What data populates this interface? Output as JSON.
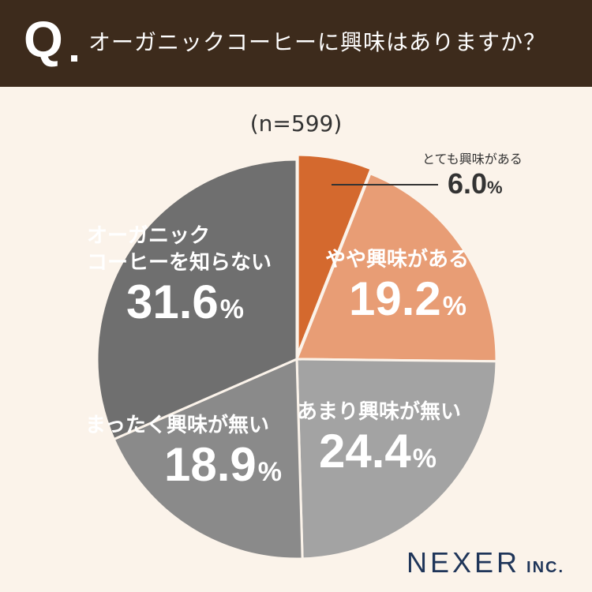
{
  "header": {
    "q_mark": "Q",
    "question": "オーガニックコーヒーに興味はありますか？"
  },
  "sample_size": "(n=599)",
  "labels": {
    "very": {
      "name": "とても興味がある",
      "value": "6.0"
    },
    "somewhat": {
      "name": "やや興味がある",
      "value": "19.2"
    },
    "notmuch": {
      "name": "あまり興味が無い",
      "value": "24.4"
    },
    "none": {
      "name": "まったく興味が無い",
      "value": "18.9"
    },
    "unaware": {
      "name1": "オーガニック",
      "name2": "コーヒーを知らない",
      "value": "31.6"
    },
    "percent_sign": "%"
  },
  "logo": {
    "main": "NEXER",
    "sub": "INC."
  },
  "colors": {
    "header_bg": "#3d2b1c",
    "background": "#fbf3ea",
    "very": "#d4692e",
    "somewhat": "#e89d75",
    "notmuch": "#a3a3a3",
    "none": "#8a8a8a",
    "unaware": "#6f6f6f"
  },
  "chart_data": {
    "type": "pie",
    "categories": [
      "とても興味がある",
      "やや興味がある",
      "あまり興味が無い",
      "まったく興味が無い",
      "オーガニックコーヒーを知らない"
    ],
    "values": [
      6.0,
      19.2,
      24.4,
      18.9,
      31.6
    ],
    "start": "12 o'clock",
    "direction": "clockwise",
    "exploded_slice": "とても興味がある"
  }
}
